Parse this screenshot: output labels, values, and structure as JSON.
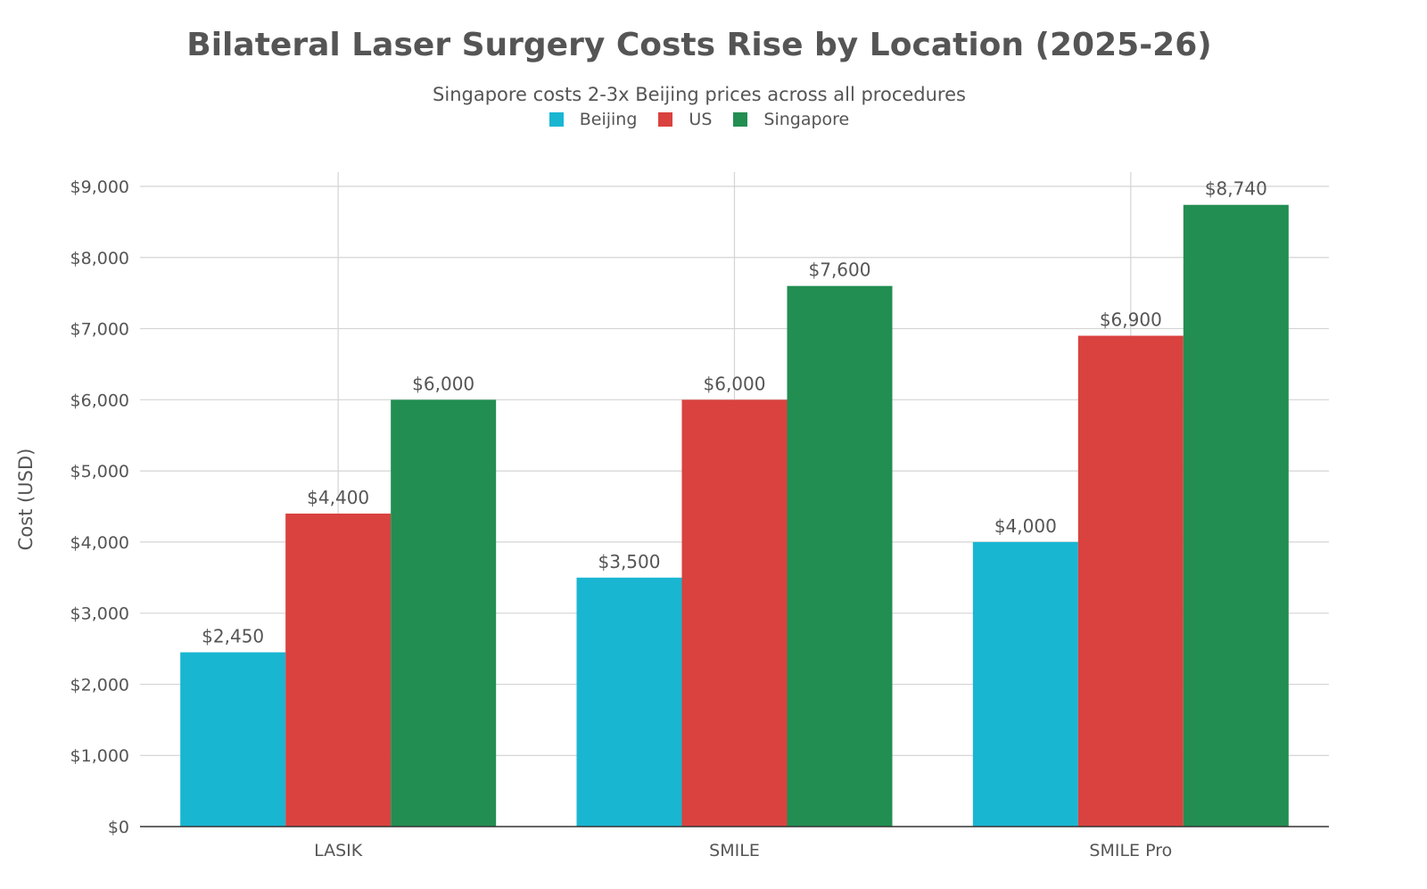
{
  "chart_data": {
    "type": "bar",
    "title": "Bilateral Laser Surgery Costs Rise by Location (2025-26)",
    "subtitle": "Singapore costs 2-3x Beijing prices across all procedures",
    "xlabel": "",
    "ylabel": "Cost (USD)",
    "ylim": [
      0,
      9000
    ],
    "yticks": [
      0,
      1000,
      2000,
      3000,
      4000,
      5000,
      6000,
      7000,
      8000,
      9000
    ],
    "ytick_labels": [
      "$0",
      "$1,000",
      "$2,000",
      "$3,000",
      "$4,000",
      "$5,000",
      "$6,000",
      "$7,000",
      "$8,000",
      "$9,000"
    ],
    "grid": true,
    "legend_position": "top",
    "categories": [
      "LASIK",
      "SMILE",
      "SMILE Pro"
    ],
    "series": [
      {
        "name": "Beijing",
        "color": "#19b6d2",
        "values": [
          2450,
          3500,
          4000
        ],
        "labels": [
          "$2,450",
          "$3,500",
          "$4,000"
        ]
      },
      {
        "name": "US",
        "color": "#d9423f",
        "values": [
          4400,
          6000,
          6900
        ],
        "labels": [
          "$4,400",
          "$6,000",
          "$6,900"
        ]
      },
      {
        "name": "Singapore",
        "color": "#228e52",
        "values": [
          6000,
          7600,
          8740
        ],
        "labels": [
          "$6,000",
          "$7,600",
          "$8,740"
        ]
      }
    ]
  }
}
